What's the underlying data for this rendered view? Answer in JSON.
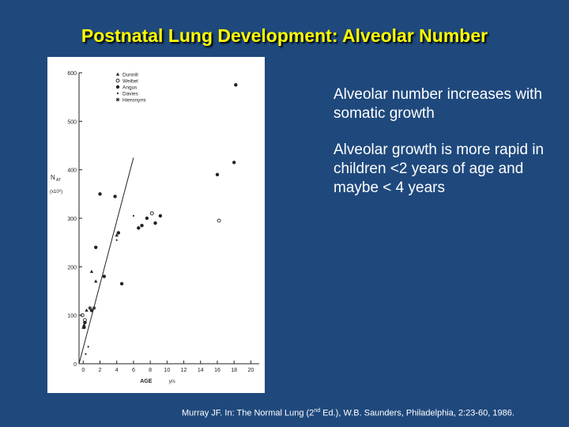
{
  "slide": {
    "title": "Postnatal Lung Development: Alveolar Number",
    "bullets": [
      "Alveolar number increases with somatic growth",
      "Alveolar growth is more rapid in children <2 years of age and maybe < 4 years"
    ],
    "citation": {
      "before": "Murray JF. In: The Normal Lung (2",
      "superscript": "nd",
      "after": " Ed.), W.B. Saunders, Philadelphia, 2:23-60, 1986."
    }
  },
  "chart_data": {
    "type": "scatter",
    "title": "",
    "xlabel": "AGE",
    "xunit": "yrs",
    "ylabel_main": "N",
    "ylabel_sub": "AT",
    "ylabel_scale": "(x10⁶)",
    "xlim": [
      -0.5,
      21
    ],
    "ylim": [
      0,
      600
    ],
    "x_ticks": [
      0,
      2,
      4,
      6,
      8,
      10,
      12,
      14,
      16,
      18,
      20
    ],
    "x_tick_labels": [
      "0",
      "2",
      "4",
      "6",
      "8",
      "10",
      "12",
      "14",
      "16",
      "18",
      "20"
    ],
    "y_ticks": [
      0,
      100,
      200,
      300,
      400,
      500,
      600
    ],
    "y_tick_labels": [
      "0",
      "100",
      "200",
      "300",
      "400",
      "500",
      "600"
    ],
    "legend": {
      "placement": "top-left",
      "entries": [
        "Dunnill",
        "Weibel",
        "Angus",
        "Davies",
        "Hieronymi"
      ]
    },
    "trend_line": {
      "x": [
        -0.5,
        6
      ],
      "y": [
        0,
        425
      ]
    },
    "series": [
      {
        "name": "Dunnill",
        "marker": "triangle",
        "x": [
          0.0,
          0.1,
          0.4,
          1.0,
          1.5,
          4.0
        ],
        "y": [
          75,
          80,
          110,
          190,
          170,
          265
        ]
      },
      {
        "name": "Weibel",
        "marker": "circle-open",
        "x": [
          -0.1,
          0.2,
          8.2,
          16.2
        ],
        "y": [
          100,
          90,
          310,
          295
        ]
      },
      {
        "name": "Angus",
        "marker": "circle-filled",
        "x": [
          0.1,
          0.2,
          1.0,
          1.5,
          2.0,
          2.5,
          3.8,
          4.2,
          4.6,
          6.6,
          7.0,
          7.6,
          8.6,
          9.2,
          16.0,
          18.0,
          18.2
        ],
        "y": [
          75,
          85,
          110,
          240,
          350,
          180,
          345,
          270,
          165,
          280,
          285,
          300,
          290,
          305,
          390,
          415,
          575
        ]
      },
      {
        "name": "Davies",
        "marker": "dot",
        "x": [
          0.3,
          0.6,
          4.0,
          6.0
        ],
        "y": [
          20,
          35,
          255,
          305
        ]
      },
      {
        "name": "Hieronymi",
        "marker": "star",
        "x": [
          0.8,
          1.3
        ],
        "y": [
          115,
          115
        ]
      }
    ]
  }
}
